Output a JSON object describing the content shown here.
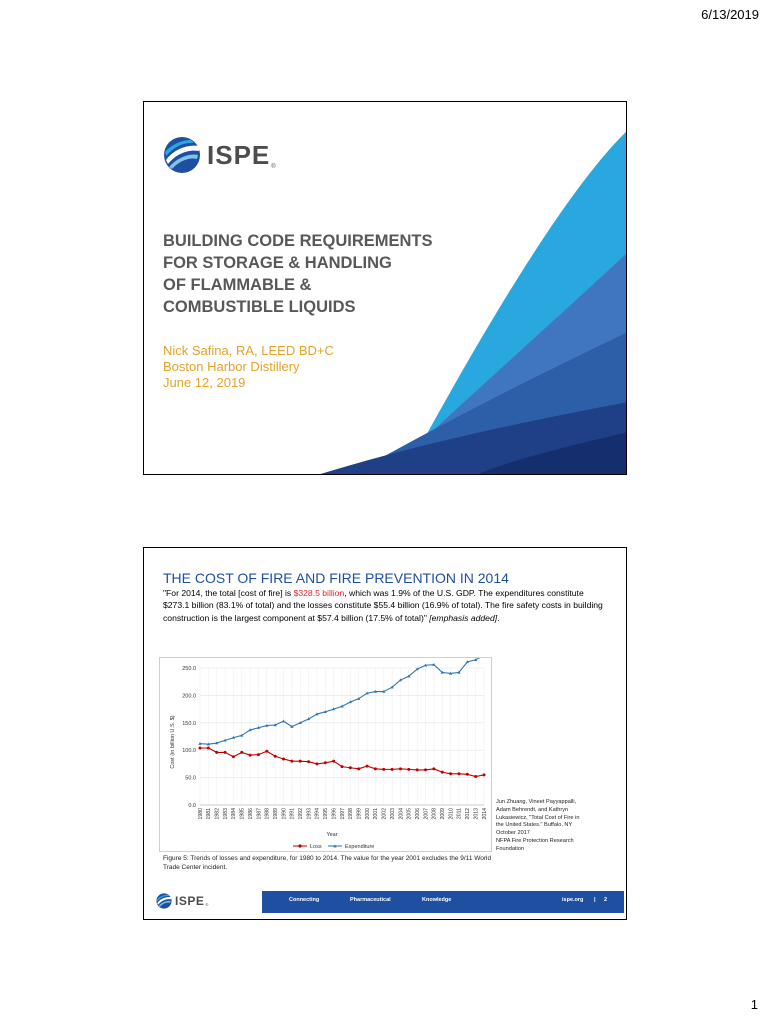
{
  "page": {
    "date": "6/13/2019",
    "number": "1"
  },
  "slide1": {
    "logo_text": "ISPE",
    "logo_mark": "®",
    "title_lines": [
      "BUILDING CODE REQUIREMENTS",
      "FOR STORAGE & HANDLING",
      "OF FLAMMABLE &",
      "COMBUSTIBLE LIQUIDS"
    ],
    "presenter_lines": [
      "Nick Safina, RA, LEED BD+C",
      "Boston Harbor Distillery",
      "June 12, 2019"
    ]
  },
  "slide2": {
    "title": "THE COST OF FIRE AND FIRE PREVENTION IN 2014",
    "quote_part1": "\"For 2014, the total [cost of fire] is ",
    "quote_highlight": "$328.5 billion",
    "quote_part2": ", which was 1.9% of the U.S. GDP. The expenditures constitute $273.1 billion (83.1% of total) and the losses constitute $55.4 billion (16.9% of total). The fire safety costs in building construction is the largest component at $57.4 billion (17.5% of total)\" ",
    "quote_emphasis": "[emphasis added]",
    "quote_end": ".",
    "caption": "Figure 5: Trends of losses and expenditure, for 1980 to 2014. The value for the year 2001 excludes the 9/11 World Trade Center incident.",
    "source_lines": [
      "Jun Zhuang, Vineet Payyappalli,",
      "Adam Behrendt, and Kathryn",
      "Lukasiewicz, \"Total Cost of Fire in",
      "the United States.\" Buffalo, NY",
      "October 2017",
      "NFPA Fire Protection Research",
      "Foundation"
    ],
    "footer": {
      "logo_text": "ISPE",
      "logo_mark": "®",
      "items": [
        "Connecting",
        "Pharmaceutical",
        "Knowledge"
      ],
      "url": "ispe.org",
      "separator": "|",
      "page": "2"
    }
  },
  "colors": {
    "ispe_blue": "#1f4fa0",
    "loss_red": "#c00000",
    "expenditure_blue": "#2e75b6",
    "accent_orange": "#e2a32a"
  },
  "chart_data": {
    "type": "line",
    "xlabel": "Year",
    "ylabel": "Cost (in billion U.S. $)",
    "ylim": [
      0,
      250
    ],
    "yticks": [
      "0.0",
      "50.0",
      "100.0",
      "150.0",
      "200.0",
      "250.0"
    ],
    "x": [
      "1980",
      "1981",
      "1982",
      "1983",
      "1984",
      "1985",
      "1986",
      "1987",
      "1988",
      "1989",
      "1990",
      "1991",
      "1992",
      "1993",
      "1994",
      "1995",
      "1996",
      "1997",
      "1998",
      "1999",
      "2000",
      "2001",
      "2002",
      "2003",
      "2004",
      "2005",
      "2006",
      "2007",
      "2008",
      "2009",
      "2010",
      "2011",
      "2012",
      "2013",
      "2014"
    ],
    "grid": true,
    "legend_position": "bottom",
    "series": [
      {
        "name": "Loss",
        "color": "#c00000",
        "values": [
          104,
          104,
          96,
          96,
          88,
          96,
          91,
          92,
          98,
          89,
          84,
          80,
          80,
          79,
          75,
          77,
          80,
          70,
          68,
          66,
          71,
          66,
          65,
          65,
          66,
          65,
          64,
          64,
          66,
          60,
          57,
          57,
          56,
          52,
          55
        ]
      },
      {
        "name": "Expenditure",
        "color": "#2e75b6",
        "values": [
          112,
          111,
          113,
          118,
          123,
          127,
          137,
          141,
          145,
          146,
          153,
          143,
          150,
          157,
          166,
          170,
          175,
          180,
          188,
          194,
          204,
          207,
          207,
          215,
          228,
          235,
          248,
          255,
          256,
          242,
          240,
          242,
          261,
          265,
          273
        ]
      }
    ]
  }
}
